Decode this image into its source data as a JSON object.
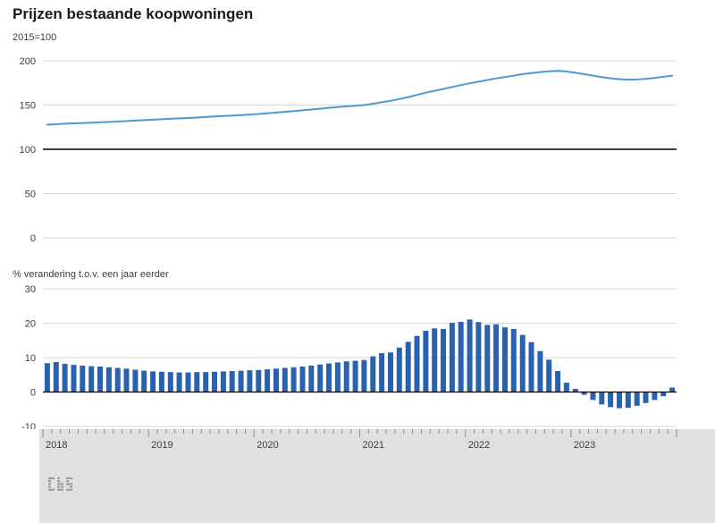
{
  "title": "Prijzen bestaande koopwoningen",
  "colors": {
    "line": "#4a9bd4",
    "bar": "#2b62b0",
    "grid": "#d9d9d9",
    "reference": "#000000",
    "text": "#3c3c3c",
    "footer_bg": "#e0e0e0",
    "tick": "#8c8c8c"
  },
  "footer": {
    "logo": "cbs-logo"
  },
  "chart_data": [
    {
      "type": "line",
      "name": "prijsindex-bestaande-koopwoningen",
      "title": "Prijzen bestaande koopwoningen",
      "unit_label": "2015=100",
      "ylim": [
        0,
        200
      ],
      "yticks": [
        0,
        50,
        100,
        150,
        200
      ],
      "reference_line": 100,
      "x": {
        "start": "2018-01",
        "end": "2023-12",
        "frequency": "monthly"
      },
      "year_labels": [
        "2018",
        "2019",
        "2020",
        "2021",
        "2022",
        "2023"
      ],
      "grid": true,
      "legend": "none",
      "values": [
        127.8,
        128.4,
        128.9,
        129.3,
        129.7,
        130.1,
        130.5,
        130.9,
        131.4,
        131.9,
        132.4,
        132.9,
        133.4,
        133.9,
        134.4,
        134.9,
        135.4,
        135.9,
        136.5,
        137.1,
        137.6,
        138.1,
        138.7,
        139.3,
        139.9,
        140.7,
        141.5,
        142.3,
        143.1,
        144.0,
        144.9,
        145.9,
        146.9,
        147.8,
        148.5,
        149.1,
        150.0,
        151.5,
        153.1,
        154.8,
        156.8,
        159.0,
        161.4,
        163.9,
        166.2,
        168.2,
        170.4,
        172.5,
        174.5,
        176.4,
        178.3,
        180.1,
        181.7,
        183.2,
        184.9,
        186.2,
        187.3,
        188.1,
        188.6,
        188.0,
        186.5,
        184.8,
        183.2,
        181.5,
        180.2,
        179.2,
        178.7,
        178.9,
        179.6,
        180.7,
        181.9,
        183.2
      ]
    },
    {
      "type": "bar",
      "name": "jaarmutatie",
      "ylabel": "% verandering t.o.v. een jaar eerder",
      "ylim": [
        -10,
        30
      ],
      "yticks": [
        -10,
        0,
        10,
        20,
        30
      ],
      "zero_line": 0,
      "x": {
        "start": "2018-01",
        "end": "2023-12",
        "frequency": "monthly"
      },
      "year_labels": [
        "2018",
        "2019",
        "2020",
        "2021",
        "2022",
        "2023"
      ],
      "grid": true,
      "legend": "none",
      "values": [
        8.4,
        8.7,
        8.2,
        7.9,
        7.7,
        7.5,
        7.4,
        7.2,
        7.0,
        6.8,
        6.5,
        6.2,
        6.0,
        5.9,
        5.8,
        5.7,
        5.7,
        5.8,
        5.8,
        5.9,
        6.0,
        6.1,
        6.2,
        6.3,
        6.4,
        6.6,
        6.8,
        7.0,
        7.2,
        7.4,
        7.7,
        8.0,
        8.3,
        8.6,
        8.9,
        9.1,
        9.3,
        10.4,
        11.3,
        11.5,
        12.9,
        14.6,
        16.3,
        17.8,
        18.5,
        18.3,
        20.1,
        20.4,
        21.1,
        20.3,
        19.5,
        19.7,
        18.8,
        18.3,
        16.6,
        14.5,
        11.9,
        9.4,
        6.1,
        2.7,
        0.9,
        -0.8,
        -2.3,
        -3.6,
        -4.4,
        -4.7,
        -4.6,
        -4.0,
        -3.2,
        -2.3,
        -1.2,
        1.3
      ]
    }
  ]
}
